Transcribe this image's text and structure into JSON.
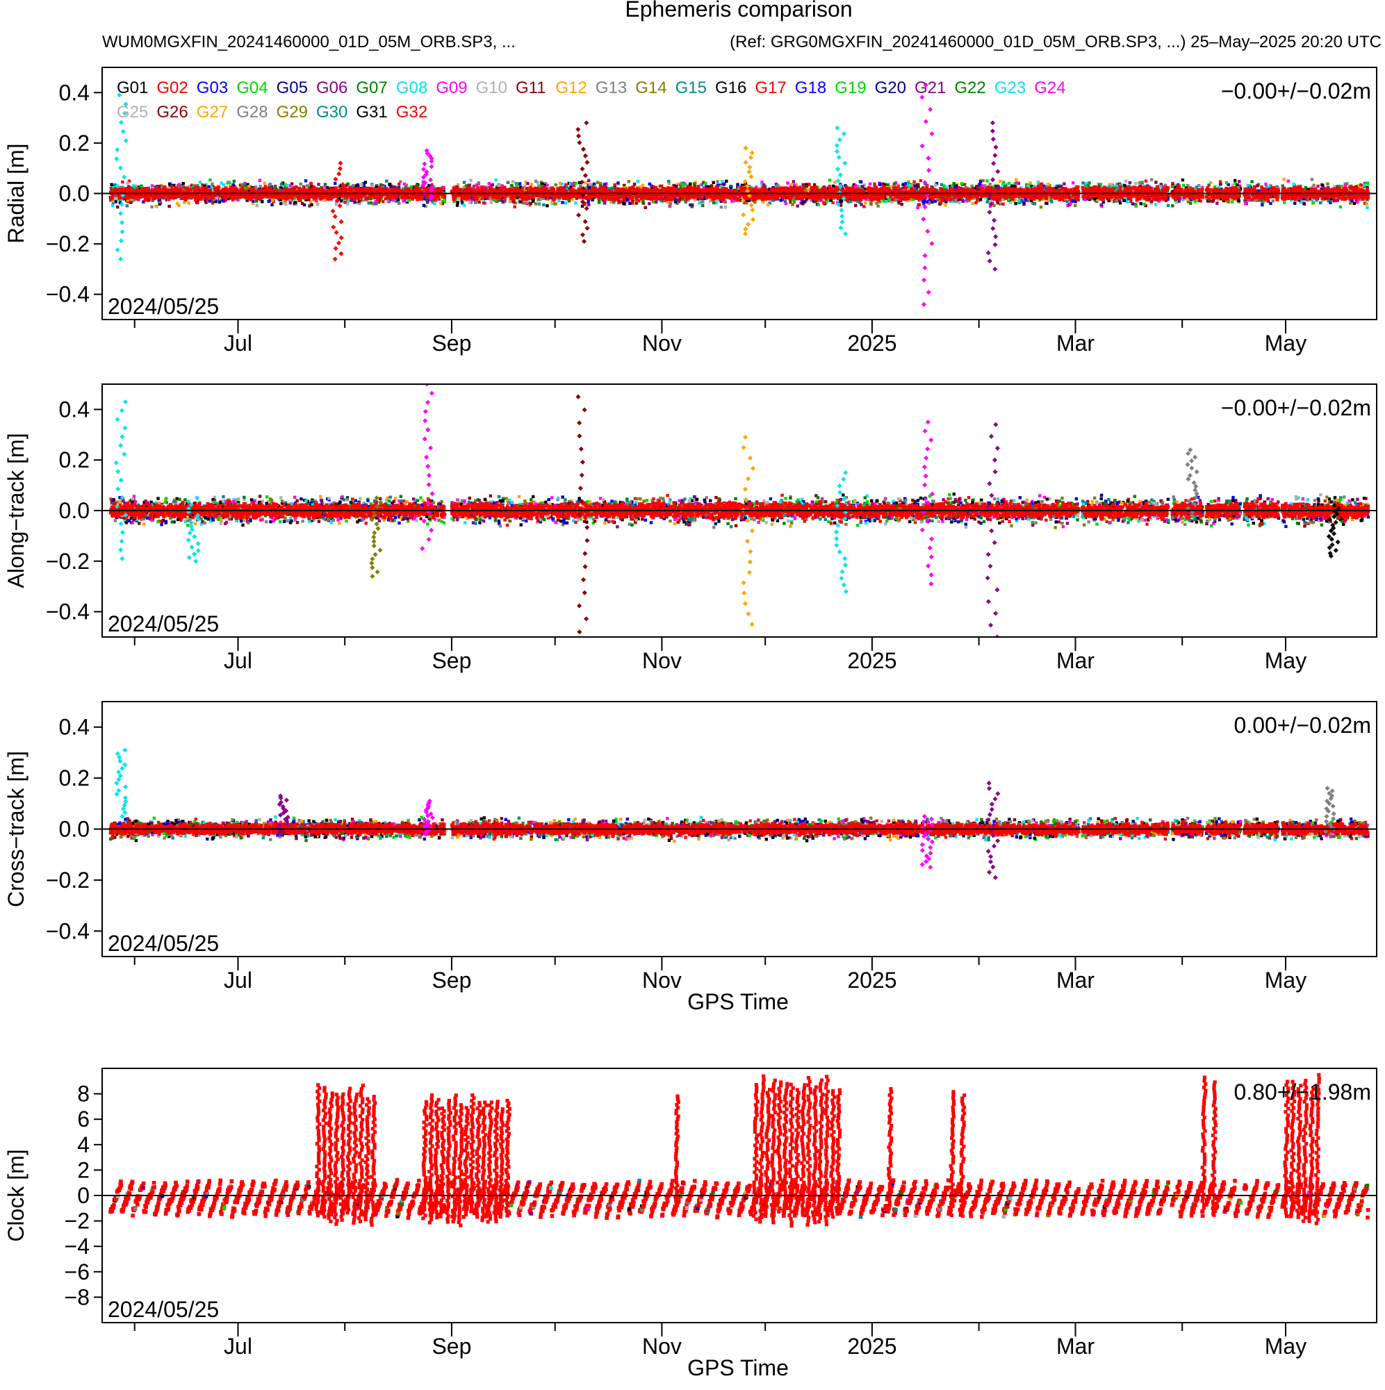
{
  "header": {
    "title": "Ephemeris comparison",
    "left_subtitle": "WUM0MGXFIN_20241460000_01D_05M_ORB.SP3, ...",
    "right_subtitle": "(Ref: GRG0MGXFIN_20241460000_01D_05M_ORB.SP3, ...) 25–May–2025 20:20 UTC"
  },
  "legend": {
    "items": [
      {
        "label": "G01",
        "color": "#000000"
      },
      {
        "label": "G02",
        "color": "#ff0000"
      },
      {
        "label": "G03",
        "color": "#0000ff"
      },
      {
        "label": "G04",
        "color": "#00d800"
      },
      {
        "label": "G05",
        "color": "#00008b"
      },
      {
        "label": "G06",
        "color": "#8b008b"
      },
      {
        "label": "G07",
        "color": "#008000"
      },
      {
        "label": "G08",
        "color": "#00e5ee"
      },
      {
        "label": "G09",
        "color": "#ff00ff"
      },
      {
        "label": "G10",
        "color": "#b0b0b0"
      },
      {
        "label": "G11",
        "color": "#8b0000"
      },
      {
        "label": "G12",
        "color": "#ffa500"
      },
      {
        "label": "G13",
        "color": "#808080"
      },
      {
        "label": "G14",
        "color": "#808000"
      },
      {
        "label": "G15",
        "color": "#008b8b"
      },
      {
        "label": "G16",
        "color": "#000000"
      },
      {
        "label": "G17",
        "color": "#ff0000"
      },
      {
        "label": "G18",
        "color": "#0000ff"
      },
      {
        "label": "G19",
        "color": "#00d800"
      },
      {
        "label": "G20",
        "color": "#00008b"
      },
      {
        "label": "G21",
        "color": "#8b008b"
      },
      {
        "label": "G22",
        "color": "#008000"
      },
      {
        "label": "G23",
        "color": "#00e5ee"
      },
      {
        "label": "G24",
        "color": "#ff00ff"
      },
      {
        "label": "G25",
        "color": "#b0b0b0"
      },
      {
        "label": "G26",
        "color": "#8b0000"
      },
      {
        "label": "G27",
        "color": "#ffa500"
      },
      {
        "label": "G28",
        "color": "#808080"
      },
      {
        "label": "G29",
        "color": "#808000"
      },
      {
        "label": "G30",
        "color": "#008b8b"
      },
      {
        "label": "G31",
        "color": "#000000"
      },
      {
        "label": "G32",
        "color": "#ff0000"
      }
    ]
  },
  "chart_data": [
    {
      "type": "scatter",
      "ylabel": "Radial [m]",
      "xlabel": "",
      "ylim": [
        -0.5,
        0.5
      ],
      "yticks": [
        0.4,
        0.2,
        0.0,
        -0.2,
        -0.4
      ],
      "ytick_labels": [
        "0.4",
        "0.2",
        "0.0",
        "−0.2",
        "−0.4"
      ],
      "xlim": [
        "2024-05-25",
        "2025-05-25"
      ],
      "x_major_ticks": [
        "2024-07-01",
        "2024-09-01",
        "2024-11-01",
        "2025-01-01",
        "2025-03-01",
        "2025-05-01"
      ],
      "x_tick_labels": [
        "Jul",
        "Sep",
        "Nov",
        "2025",
        "Mar",
        "May"
      ],
      "x_minor_ticks": [
        "2024-06-01",
        "2024-08-01",
        "2024-10-01",
        "2024-12-01",
        "2025-02-01",
        "2025-04-01"
      ],
      "start_label": "2024/05/25",
      "stat_text": "−0.00+/−0.02m",
      "typical_spread": 0.06,
      "outliers": [
        {
          "date": "2024-05-28",
          "sat": "G08",
          "ymin": -0.26,
          "ymax": 0.39
        },
        {
          "date": "2024-07-30",
          "sat": "G02",
          "ymin": -0.26,
          "ymax": 0.12
        },
        {
          "date": "2024-08-25",
          "sat": "G09",
          "ymin": -0.02,
          "ymax": 0.17
        },
        {
          "date": "2024-10-09",
          "sat": "G11",
          "ymin": -0.19,
          "ymax": 0.28
        },
        {
          "date": "2024-11-26",
          "sat": "G12",
          "ymin": -0.16,
          "ymax": 0.18
        },
        {
          "date": "2024-12-23",
          "sat": "G08",
          "ymin": -0.16,
          "ymax": 0.26
        },
        {
          "date": "2025-01-17",
          "sat": "G09",
          "ymin": -0.44,
          "ymax": 0.43
        },
        {
          "date": "2025-02-05",
          "sat": "G06",
          "ymin": -0.3,
          "ymax": 0.28
        }
      ]
    },
    {
      "type": "scatter",
      "ylabel": "Along−track [m]",
      "xlabel": "",
      "ylim": [
        -0.5,
        0.5
      ],
      "yticks": [
        0.4,
        0.2,
        0.0,
        -0.2,
        -0.4
      ],
      "ytick_labels": [
        "0.4",
        "0.2",
        "0.0",
        "−0.2",
        "−0.4"
      ],
      "xlim": [
        "2024-05-25",
        "2025-05-25"
      ],
      "x_major_ticks": [
        "2024-07-01",
        "2024-09-01",
        "2024-11-01",
        "2025-01-01",
        "2025-03-01",
        "2025-05-01"
      ],
      "x_tick_labels": [
        "Jul",
        "Sep",
        "Nov",
        "2025",
        "Mar",
        "May"
      ],
      "x_minor_ticks": [
        "2024-06-01",
        "2024-08-01",
        "2024-10-01",
        "2024-12-01",
        "2025-02-01",
        "2025-04-01"
      ],
      "start_label": "2024/05/25",
      "stat_text": "−0.00+/−0.02m",
      "typical_spread": 0.07,
      "outliers": [
        {
          "date": "2024-05-28",
          "sat": "G08",
          "ymin": -0.19,
          "ymax": 0.43
        },
        {
          "date": "2024-06-18",
          "sat": "G08",
          "ymin": -0.2,
          "ymax": 0.05
        },
        {
          "date": "2024-08-10",
          "sat": "G14",
          "ymin": -0.26,
          "ymax": 0.05
        },
        {
          "date": "2024-08-25",
          "sat": "G09",
          "ymin": -0.15,
          "ymax": 0.5
        },
        {
          "date": "2024-10-09",
          "sat": "G11",
          "ymin": -0.48,
          "ymax": 0.45
        },
        {
          "date": "2024-11-26",
          "sat": "G12",
          "ymin": -0.45,
          "ymax": 0.29
        },
        {
          "date": "2024-12-23",
          "sat": "G08",
          "ymin": -0.32,
          "ymax": 0.15
        },
        {
          "date": "2025-01-17",
          "sat": "G09",
          "ymin": -0.29,
          "ymax": 0.35
        },
        {
          "date": "2025-02-05",
          "sat": "G06",
          "ymin": -0.5,
          "ymax": 0.34
        },
        {
          "date": "2025-04-04",
          "sat": "G13",
          "ymin": -0.02,
          "ymax": 0.24
        },
        {
          "date": "2025-05-15",
          "sat": "G31",
          "ymin": -0.18,
          "ymax": 0.02
        }
      ]
    },
    {
      "type": "scatter",
      "ylabel": "Cross−track [m]",
      "xlabel": "GPS Time",
      "ylim": [
        -0.5,
        0.5
      ],
      "yticks": [
        0.4,
        0.2,
        0.0,
        -0.2,
        -0.4
      ],
      "ytick_labels": [
        "0.4",
        "0.2",
        "0.0",
        "−0.2",
        "−0.4"
      ],
      "xlim": [
        "2024-05-25",
        "2025-05-25"
      ],
      "x_major_ticks": [
        "2024-07-01",
        "2024-09-01",
        "2024-11-01",
        "2025-01-01",
        "2025-03-01",
        "2025-05-01"
      ],
      "x_tick_labels": [
        "Jul",
        "Sep",
        "Nov",
        "2025",
        "Mar",
        "May"
      ],
      "x_minor_ticks": [
        "2024-06-01",
        "2024-08-01",
        "2024-10-01",
        "2024-12-01",
        "2025-02-01",
        "2025-04-01"
      ],
      "start_label": "2024/05/25",
      "stat_text": "0.00+/−0.02m",
      "typical_spread": 0.05,
      "outliers": [
        {
          "date": "2024-05-28",
          "sat": "G08",
          "ymin": 0.05,
          "ymax": 0.31
        },
        {
          "date": "2024-07-14",
          "sat": "G06",
          "ymin": -0.02,
          "ymax": 0.13
        },
        {
          "date": "2024-08-25",
          "sat": "G09",
          "ymin": -0.02,
          "ymax": 0.11
        },
        {
          "date": "2025-01-17",
          "sat": "G09",
          "ymin": -0.15,
          "ymax": 0.05
        },
        {
          "date": "2025-02-05",
          "sat": "G06",
          "ymin": -0.19,
          "ymax": 0.18
        },
        {
          "date": "2025-05-14",
          "sat": "G13",
          "ymin": -0.02,
          "ymax": 0.16
        }
      ]
    },
    {
      "type": "scatter",
      "ylabel": "Clock [m]",
      "xlabel": "GPS Time",
      "ylim": [
        -10,
        10
      ],
      "yticks": [
        8,
        6,
        4,
        2,
        0,
        -2,
        -4,
        -6,
        -8
      ],
      "ytick_labels": [
        "8",
        "6",
        "4",
        "2",
        "0",
        "−2",
        "−4",
        "−6",
        "−8"
      ],
      "xlim": [
        "2024-05-25",
        "2025-05-25"
      ],
      "x_major_ticks": [
        "2024-07-01",
        "2024-09-01",
        "2024-11-01",
        "2025-01-01",
        "2025-03-01",
        "2025-05-01"
      ],
      "x_tick_labels": [
        "Jul",
        "Sep",
        "Nov",
        "2025",
        "Mar",
        "May"
      ],
      "x_minor_ticks": [
        "2024-06-01",
        "2024-08-01",
        "2024-10-01",
        "2024-12-01",
        "2025-02-01",
        "2025-04-01"
      ],
      "start_label": "2024/05/25",
      "stat_text": "0.80+/−1.98m",
      "typical_range": [
        -2,
        1.5
      ],
      "spike_groups": [
        {
          "start": "2024-07-24",
          "end": "2024-08-09",
          "peak": 8.7
        },
        {
          "start": "2024-08-24",
          "end": "2024-09-17",
          "peak": 8.0
        },
        {
          "start": "2024-11-05",
          "end": "2024-11-05",
          "peak": 8.2
        },
        {
          "start": "2024-11-28",
          "end": "2024-12-22",
          "peak": 9.4
        },
        {
          "start": "2025-01-06",
          "end": "2025-01-06",
          "peak": 9.3
        },
        {
          "start": "2025-01-24",
          "end": "2025-01-27",
          "peak": 9.0
        },
        {
          "start": "2025-04-07",
          "end": "2025-04-10",
          "peak": 9.4
        },
        {
          "start": "2025-05-01",
          "end": "2025-05-10",
          "peak": 9.5
        }
      ]
    }
  ]
}
